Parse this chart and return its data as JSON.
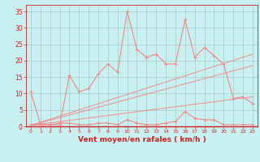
{
  "x": [
    0,
    1,
    2,
    3,
    4,
    5,
    6,
    7,
    8,
    9,
    10,
    11,
    12,
    13,
    14,
    15,
    16,
    17,
    18,
    19,
    20,
    21,
    22,
    23
  ],
  "series1": [
    10.5,
    0.5,
    0.5,
    0.5,
    15.5,
    10.5,
    11.5,
    16.0,
    19.0,
    16.5,
    35.0,
    23.5,
    21.0,
    22.0,
    19.0,
    19.0,
    32.5,
    21.0,
    24.0,
    21.5,
    19.0,
    8.5,
    9.0,
    7.0
  ],
  "series2": [
    0.5,
    0.5,
    0.5,
    1.0,
    1.0,
    0.5,
    0.5,
    1.0,
    1.0,
    0.5,
    2.0,
    1.0,
    0.5,
    0.5,
    1.0,
    1.5,
    4.5,
    2.5,
    2.0,
    2.0,
    0.5,
    0.5,
    0.5,
    0.5
  ],
  "trend1_x": [
    0,
    23
  ],
  "trend1_y": [
    0.3,
    22.0
  ],
  "trend2_x": [
    0,
    23
  ],
  "trend2_y": [
    0.3,
    18.5
  ],
  "trend3_x": [
    0,
    23
  ],
  "trend3_y": [
    0.3,
    9.0
  ],
  "bg_color": "#c8f0f0",
  "line_color": "#f08888",
  "grid_color": "#a8c8c8",
  "xlabel": "Vent moyen/en rafales ( km/h )",
  "ylim": [
    0,
    37
  ],
  "xlim": [
    -0.5,
    23.5
  ],
  "yticks": [
    0,
    5,
    10,
    15,
    20,
    25,
    30,
    35
  ],
  "xticks": [
    0,
    1,
    2,
    3,
    4,
    5,
    6,
    7,
    8,
    9,
    10,
    11,
    12,
    13,
    14,
    15,
    16,
    17,
    18,
    19,
    20,
    21,
    22,
    23
  ]
}
